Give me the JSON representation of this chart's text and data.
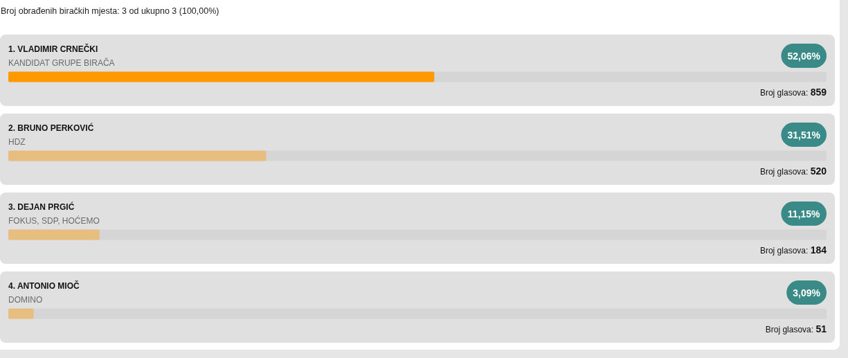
{
  "chart_data": {
    "type": "bar",
    "orientation": "horizontal",
    "title": "Broj obrađenih biračkih mjesta: 3 od ukupno 3 (100,00%)",
    "categories": [
      "1. VLADIMIR CRNEČKI",
      "2. BRUNO PERKOVIĆ",
      "3. DEJAN PRGIĆ",
      "4. ANTONIO MIOČ"
    ],
    "values": [
      52.06,
      31.51,
      11.15,
      3.09
    ],
    "colors": [
      "#ff9900",
      "#e8be80",
      "#e8be80",
      "#e8be80"
    ],
    "value_labels": [
      "52,06%",
      "31,51%",
      "11,15%",
      "3,09%"
    ],
    "xlim": [
      0,
      100
    ],
    "tick_labels": "y",
    "annotations": [
      "KANDIDAT GRUPE BIRAČA",
      "HDZ",
      "FOKUS, SDP, HOĆEMO",
      "DOMINO",
      "Broj glasova: 859",
      "Broj glasova: 520",
      "Broj glasova: 184",
      "Broj glasova: 51"
    ]
  }
}
